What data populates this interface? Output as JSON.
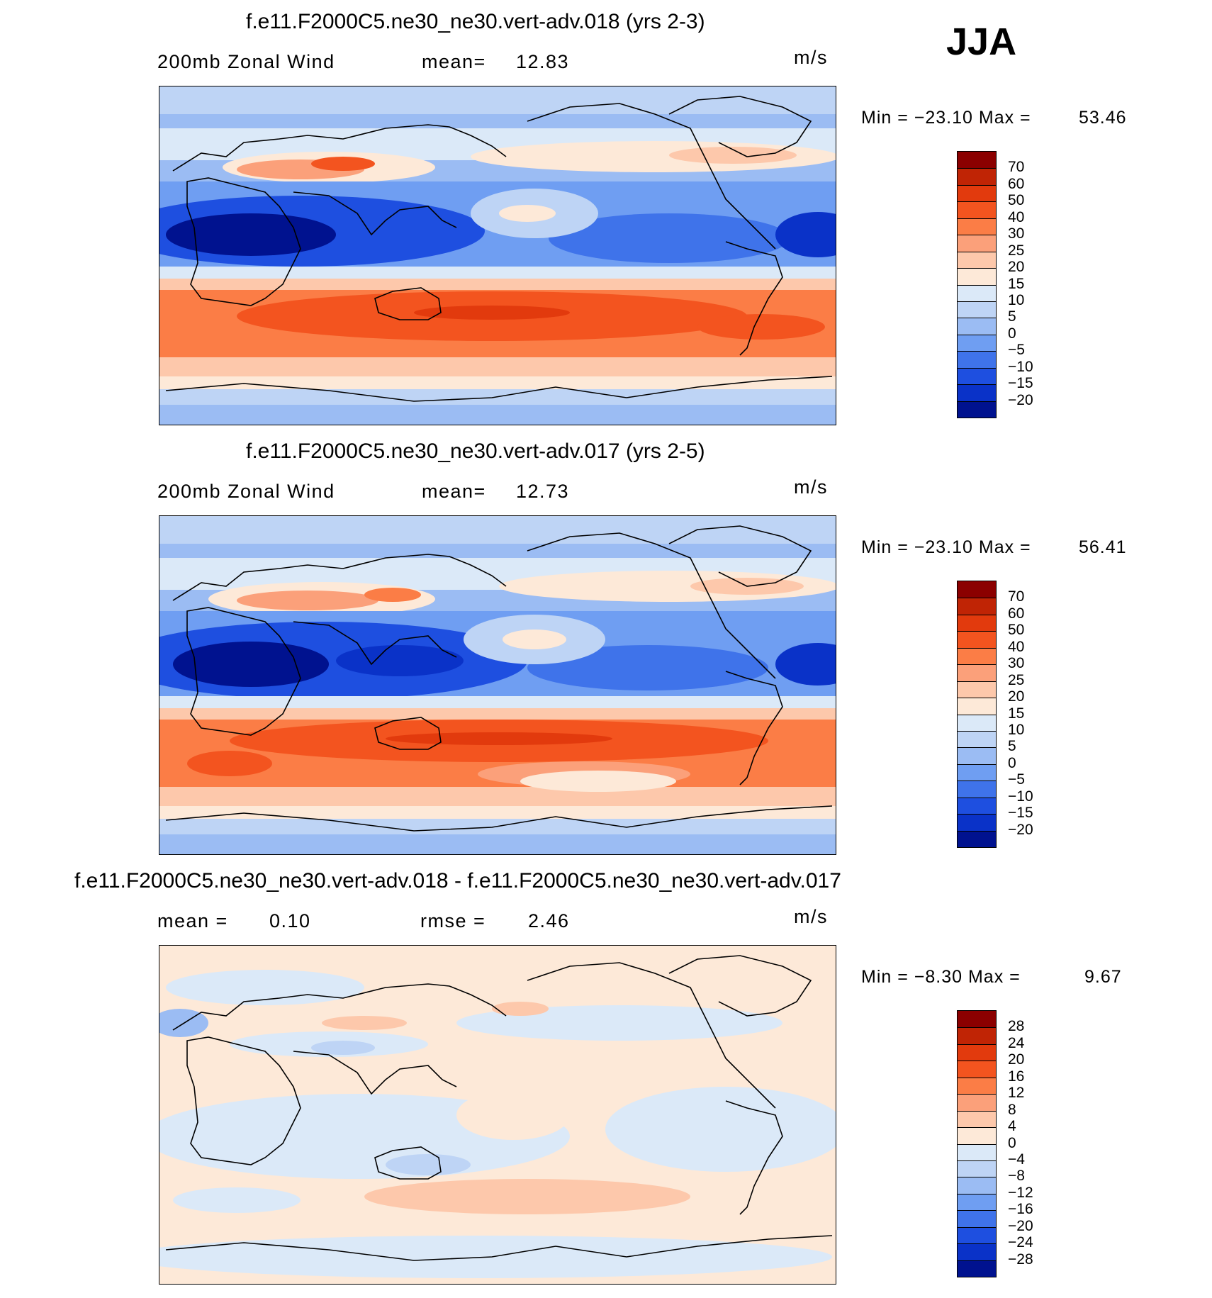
{
  "season": "JJA",
  "panels": [
    {
      "title": "f.e11.F2000C5.ne30_ne30.vert-adv.018 (yrs 2-3)",
      "left_label": "200mb Zonal Wind",
      "center_label": "mean=",
      "center_value": "12.83",
      "units": "m/s",
      "minmax": "Min = −23.10 Max =",
      "max_value": "53.46",
      "colorbar": {
        "levels": [
          "70",
          "60",
          "50",
          "40",
          "30",
          "25",
          "20",
          "15",
          "10",
          "5",
          "0",
          "−5",
          "−10",
          "−15",
          "−20"
        ],
        "colors": [
          "#8b0000",
          "#c02405",
          "#e23a0d",
          "#f3541f",
          "#fb7d46",
          "#fba07a",
          "#fdc8ab",
          "#fde9d8",
          "#dbe9f8",
          "#bed4f5",
          "#9bbcf3",
          "#6f9ef2",
          "#3f73ea",
          "#1e4fe0",
          "#0a32c8",
          "#00128f"
        ]
      }
    },
    {
      "title": "f.e11.F2000C5.ne30_ne30.vert-adv.017 (yrs 2-5)",
      "left_label": "200mb Zonal Wind",
      "center_label": "mean=",
      "center_value": "12.73",
      "units": "m/s",
      "minmax": "Min = −23.10 Max =",
      "max_value": "56.41",
      "colorbar": {
        "levels": [
          "70",
          "60",
          "50",
          "40",
          "30",
          "25",
          "20",
          "15",
          "10",
          "5",
          "0",
          "−5",
          "−10",
          "−15",
          "−20"
        ],
        "colors": [
          "#8b0000",
          "#c02405",
          "#e23a0d",
          "#f3541f",
          "#fb7d46",
          "#fba07a",
          "#fdc8ab",
          "#fde9d8",
          "#dbe9f8",
          "#bed4f5",
          "#9bbcf3",
          "#6f9ef2",
          "#3f73ea",
          "#1e4fe0",
          "#0a32c8",
          "#00128f"
        ]
      }
    },
    {
      "title": "f.e11.F2000C5.ne30_ne30.vert-adv.018 - f.e11.F2000C5.ne30_ne30.vert-adv.017",
      "left_label": "mean =",
      "left_value": "0.10",
      "center_label": "rmse =",
      "center_value": "2.46",
      "units": "m/s",
      "minmax": "Min = −8.30 Max =",
      "max_value": "9.67",
      "colorbar": {
        "levels": [
          "28",
          "24",
          "20",
          "16",
          "12",
          "8",
          "4",
          "0",
          "−4",
          "−8",
          "−12",
          "−16",
          "−20",
          "−24",
          "−28"
        ],
        "colors": [
          "#8b0000",
          "#c02405",
          "#e23a0d",
          "#f3541f",
          "#fb7d46",
          "#fba07a",
          "#fdc8ab",
          "#fde9d8",
          "#dbe9f8",
          "#bed4f5",
          "#9bbcf3",
          "#6f9ef2",
          "#3f73ea",
          "#1e4fe0",
          "#0a32c8",
          "#00128f"
        ]
      }
    }
  ]
}
